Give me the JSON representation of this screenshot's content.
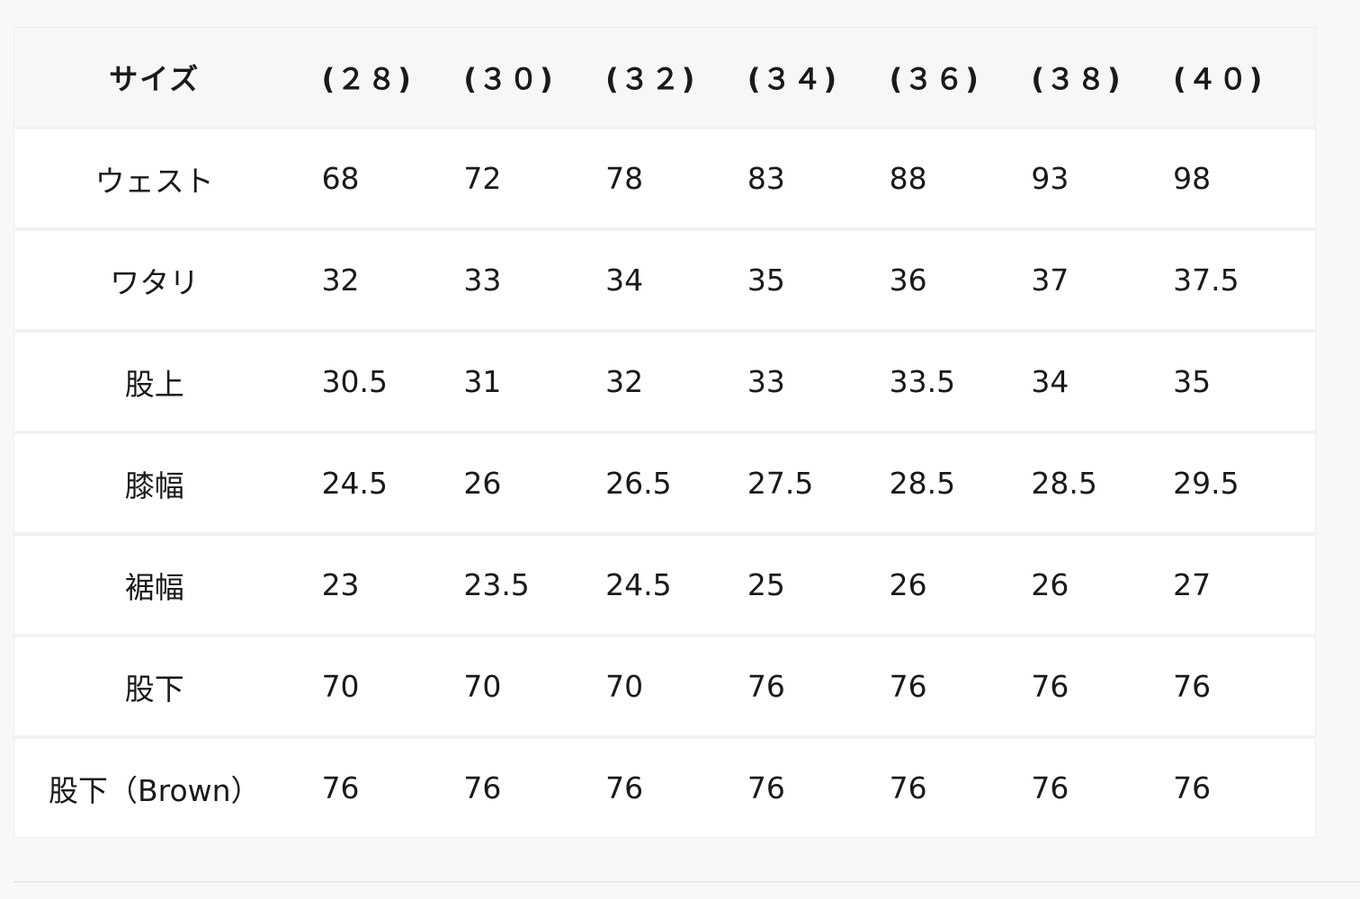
{
  "table": {
    "header": [
      "サイズ",
      "(２８)",
      "(３０)",
      "(３２)",
      "(３４)",
      "(３６)",
      "(３８)",
      "(４０)"
    ],
    "rows": [
      [
        "ウェスト",
        "68",
        "72",
        "78",
        "83",
        "88",
        "93",
        "98"
      ],
      [
        "ワタリ",
        "32",
        "33",
        "34",
        "35",
        "36",
        "37",
        "37.5"
      ],
      [
        "股上",
        "30.5",
        "31",
        "32",
        "33",
        "33.5",
        "34",
        "35"
      ],
      [
        "膝幅",
        "24.5",
        "26",
        "26.5",
        "27.5",
        "28.5",
        "28.5",
        "29.5"
      ],
      [
        "裾幅",
        "23",
        "23.5",
        "24.5",
        "25",
        "26",
        "26",
        "27"
      ],
      [
        "股下",
        "70",
        "70",
        "70",
        "76",
        "76",
        "76",
        "76"
      ],
      [
        "股下（Brown）",
        "76",
        "76",
        "76",
        "76",
        "76",
        "76",
        "76"
      ]
    ]
  }
}
